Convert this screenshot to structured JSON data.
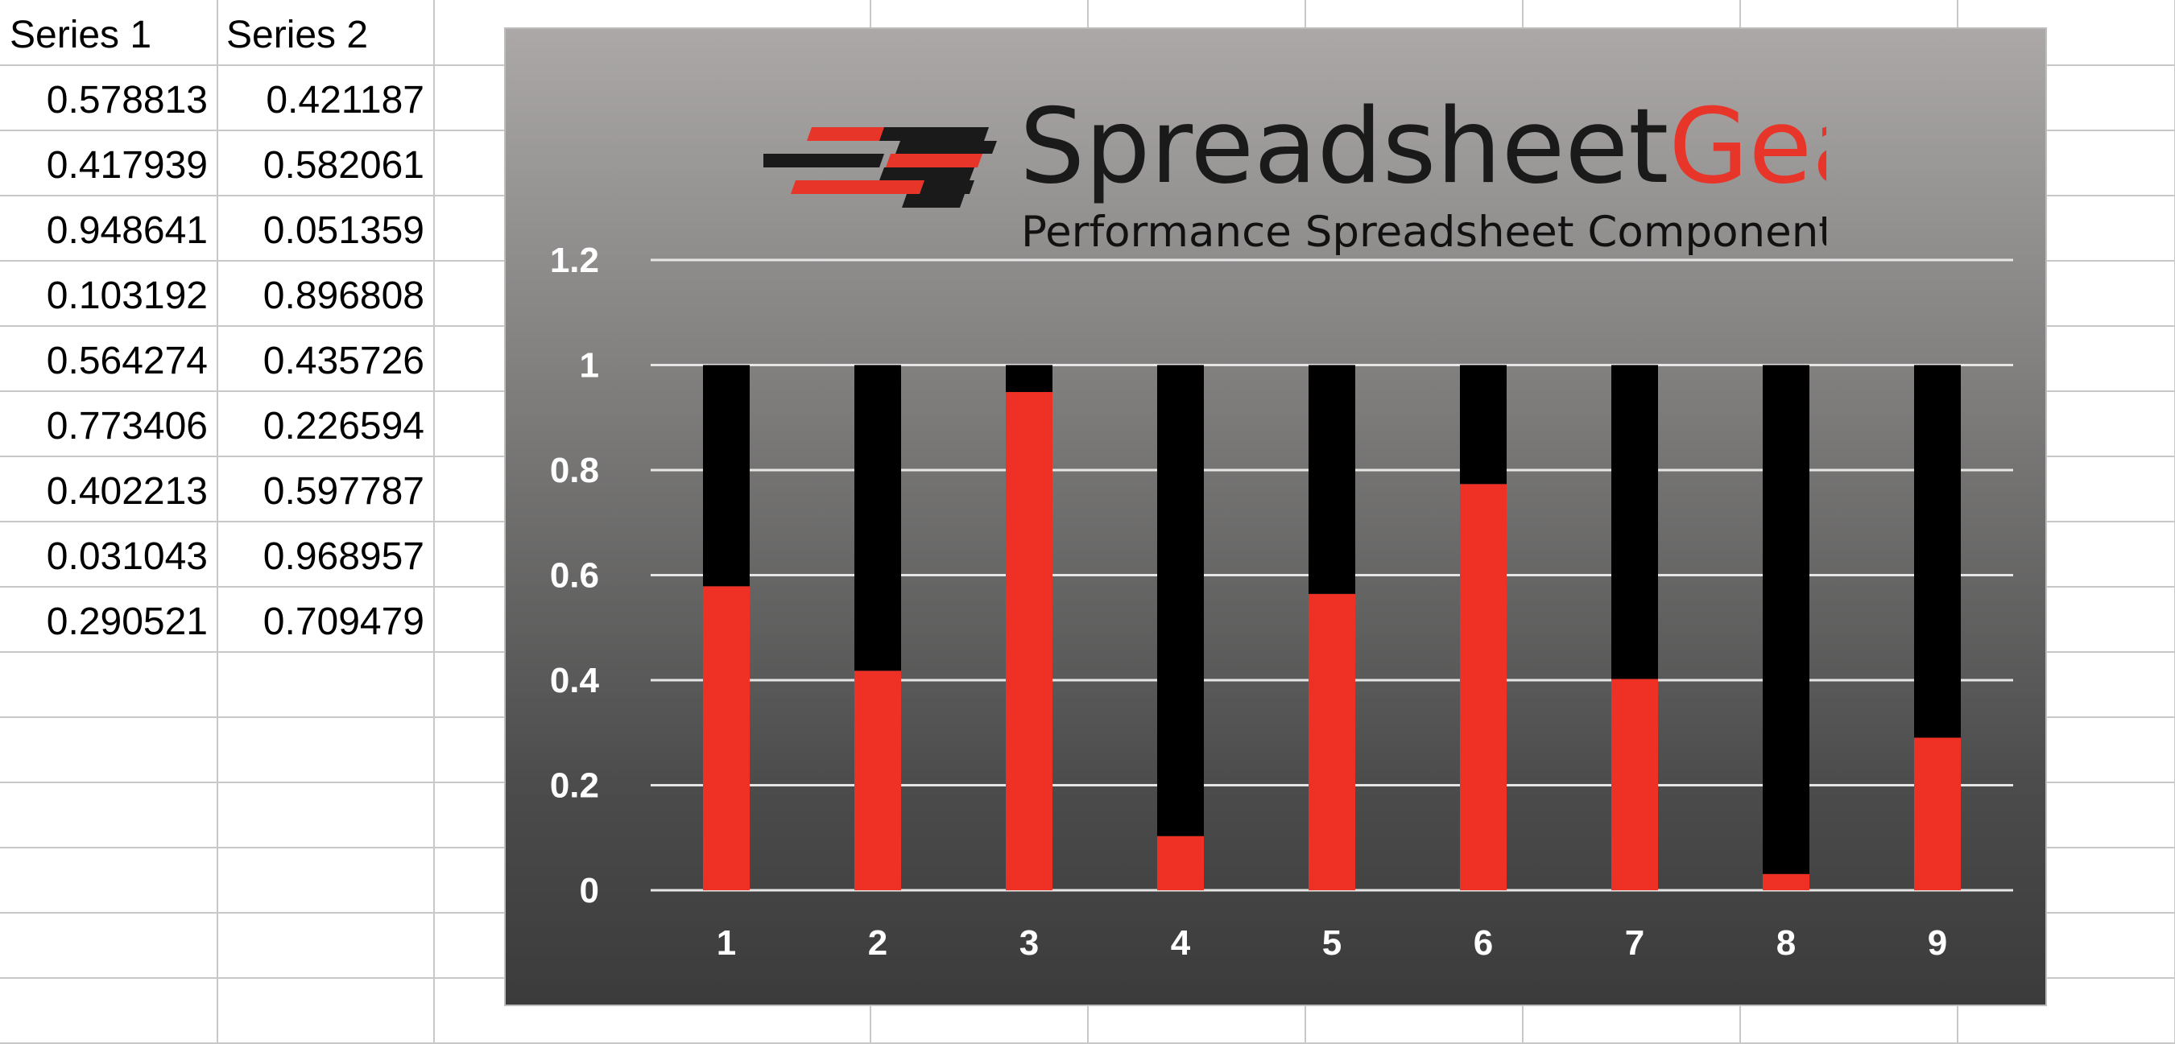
{
  "sheet": {
    "headers": [
      "Series 1",
      "Series 2"
    ],
    "rows": [
      [
        "0.578813",
        "0.421187"
      ],
      [
        "0.417939",
        "0.582061"
      ],
      [
        "0.948641",
        "0.051359"
      ],
      [
        "0.103192",
        "0.896808"
      ],
      [
        "0.564274",
        "0.435726"
      ],
      [
        "0.773406",
        "0.226594"
      ],
      [
        "0.402213",
        "0.597787"
      ],
      [
        "0.031043",
        "0.968957"
      ],
      [
        "0.290521",
        "0.709479"
      ]
    ]
  },
  "brand": {
    "name_part1": "Spreadsheet",
    "name_part2": "Gear",
    "tagline": "Performance Spreadsheet Components",
    "colors": {
      "dark": "#1a1a1a",
      "red": "#e8352a"
    }
  },
  "chart_data": {
    "type": "bar",
    "stacked": true,
    "categories": [
      "1",
      "2",
      "3",
      "4",
      "5",
      "6",
      "7",
      "8",
      "9"
    ],
    "series": [
      {
        "values": [
          0.578813,
          0.417939,
          0.948641,
          0.103192,
          0.564274,
          0.773406,
          0.402213,
          0.031043,
          0.290521
        ],
        "color": "#ee3124"
      },
      {
        "values": [
          0.421187,
          0.582061,
          0.051359,
          0.896808,
          0.435726,
          0.226594,
          0.597787,
          0.968957,
          0.709479
        ],
        "color": "#000000"
      }
    ],
    "title": "",
    "xlabel": "",
    "ylabel": "",
    "ylim": [
      0,
      1.2
    ],
    "yticks": [
      "0",
      "0.2",
      "0.4",
      "0.6",
      "0.8",
      "1",
      "1.2"
    ],
    "grid": true,
    "legend": "none"
  }
}
